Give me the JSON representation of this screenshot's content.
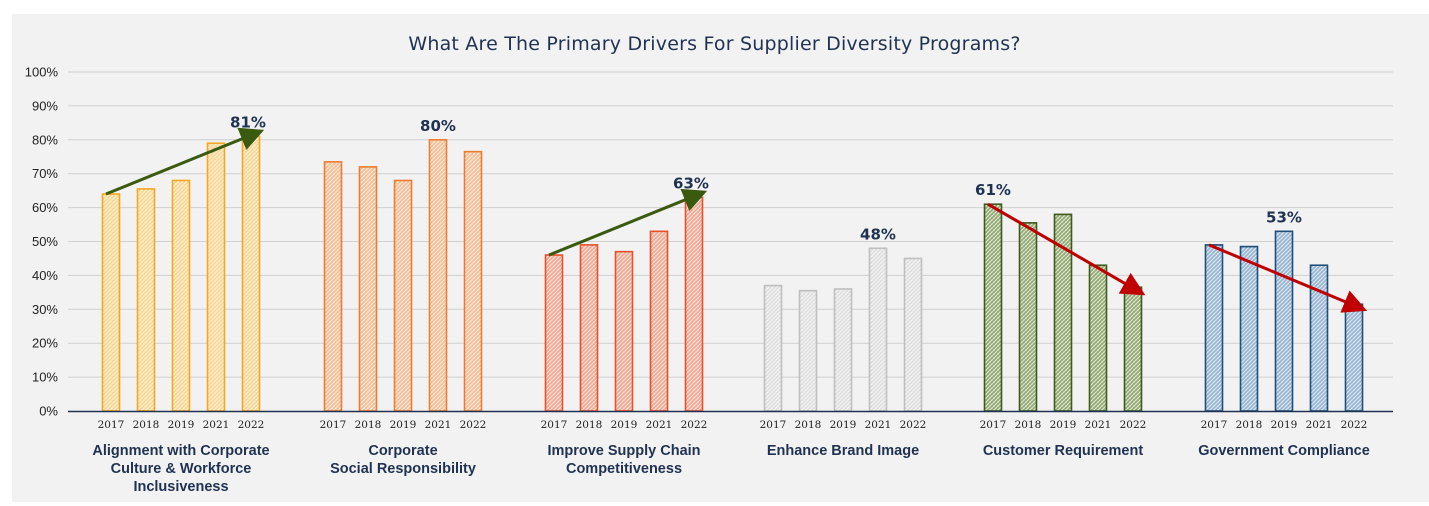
{
  "chart_data": {
    "type": "bar",
    "title": "What Are The Primary Drivers For Supplier Diversity Programs?",
    "years": [
      "2017",
      "2018",
      "2019",
      "2021",
      "2022"
    ],
    "y_ticks": [
      "0%",
      "10%",
      "20%",
      "30%",
      "40%",
      "50%",
      "60%",
      "70%",
      "80%",
      "90%",
      "100%"
    ],
    "ylim": [
      0,
      100
    ],
    "grid": true,
    "groups": [
      {
        "label_lines": [
          "Alignment with Corporate",
          "Culture & Workforce",
          "Inclusiveness"
        ],
        "values": [
          64,
          65.5,
          68,
          79,
          81
        ],
        "color": "#f5a623",
        "fill": "#fbd38a",
        "callout": "81%",
        "callout_index": 4,
        "trend": "up",
        "trend_color": "#3a5a10"
      },
      {
        "label_lines": [
          "Corporate",
          "Social Responsibility"
        ],
        "values": [
          73.5,
          72,
          68,
          80,
          76.5
        ],
        "color": "#ed7d31",
        "fill": "#f6b98f",
        "callout": "80%",
        "callout_index": 3,
        "trend": null,
        "trend_color": null
      },
      {
        "label_lines": [
          "Improve Supply Chain",
          "Competitiveness"
        ],
        "values": [
          46,
          49,
          47,
          53,
          63
        ],
        "color": "#e8502a",
        "fill": "#f4a18a",
        "callout": "63%",
        "callout_index": 4,
        "trend": "up",
        "trend_color": "#3a5a10"
      },
      {
        "label_lines": [
          "Enhance Brand Image"
        ],
        "values": [
          37,
          35.5,
          36,
          48,
          45
        ],
        "color": "#bfbfbf",
        "fill": "#dcdcdc",
        "callout": "48%",
        "callout_index": 3,
        "trend": null,
        "trend_color": null
      },
      {
        "label_lines": [
          "Customer Requirement"
        ],
        "values": [
          61,
          55.5,
          58,
          43,
          36.5
        ],
        "color": "#3f5a1e",
        "fill": "#8da56c",
        "callout": "61%",
        "callout_index": 0,
        "trend": "down",
        "trend_color": "#c00000"
      },
      {
        "label_lines": [
          "Government Compliance"
        ],
        "values": [
          49,
          48.5,
          53,
          43,
          31.5
        ],
        "color": "#1f4e79",
        "fill": "#8fb0cf",
        "callout": "53%",
        "callout_index": 2,
        "trend": "down",
        "trend_color": "#c00000"
      }
    ]
  }
}
